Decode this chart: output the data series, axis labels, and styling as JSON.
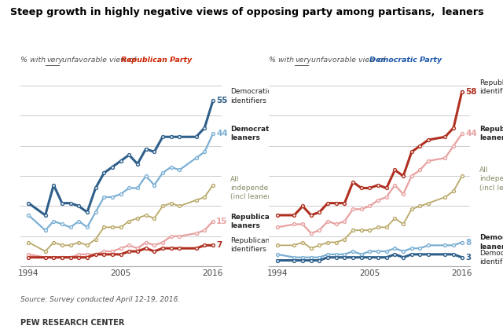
{
  "title": "Steep growth in highly negative views of opposing party among partisans,  leaners",
  "years": [
    1994,
    1996,
    1997,
    1998,
    1999,
    2000,
    2001,
    2002,
    2003,
    2004,
    2005,
    2006,
    2007,
    2008,
    2009,
    2010,
    2011,
    2012,
    2014,
    2015,
    2016
  ],
  "left_dem_id": [
    21,
    17,
    27,
    21,
    21,
    20,
    18,
    26,
    31,
    33,
    35,
    37,
    34,
    39,
    38,
    43,
    43,
    43,
    43,
    46,
    55
  ],
  "left_dem_lean": [
    17,
    12,
    15,
    14,
    13,
    15,
    13,
    18,
    23,
    23,
    24,
    26,
    26,
    30,
    27,
    31,
    33,
    32,
    36,
    38,
    44
  ],
  "left_indep": [
    8,
    5,
    8,
    7,
    7,
    8,
    7,
    9,
    13,
    13,
    13,
    15,
    16,
    17,
    16,
    20,
    21,
    20,
    22,
    23,
    27
  ],
  "left_rep_lean": [
    4,
    3,
    3,
    3,
    3,
    4,
    4,
    4,
    5,
    5,
    6,
    7,
    6,
    8,
    7,
    8,
    10,
    10,
    11,
    12,
    15
  ],
  "left_rep_id": [
    3,
    3,
    3,
    3,
    3,
    3,
    3,
    4,
    4,
    4,
    4,
    5,
    5,
    6,
    5,
    6,
    6,
    6,
    6,
    7,
    7
  ],
  "right_rep_id": [
    17,
    17,
    20,
    17,
    18,
    21,
    21,
    21,
    28,
    26,
    26,
    27,
    26,
    32,
    30,
    38,
    40,
    42,
    43,
    46,
    58
  ],
  "right_rep_lean": [
    13,
    14,
    14,
    11,
    12,
    15,
    14,
    15,
    19,
    19,
    20,
    22,
    23,
    27,
    24,
    30,
    32,
    35,
    36,
    40,
    44
  ],
  "right_indep": [
    7,
    7,
    8,
    6,
    7,
    8,
    8,
    9,
    12,
    12,
    12,
    13,
    13,
    16,
    14,
    19,
    20,
    21,
    23,
    25,
    30
  ],
  "right_dem_lean": [
    4,
    3,
    3,
    3,
    3,
    4,
    4,
    4,
    5,
    4,
    5,
    5,
    5,
    6,
    5,
    6,
    6,
    7,
    7,
    7,
    8
  ],
  "right_dem_id": [
    2,
    2,
    2,
    2,
    2,
    3,
    3,
    3,
    3,
    3,
    3,
    3,
    3,
    4,
    3,
    4,
    4,
    4,
    4,
    4,
    3
  ],
  "c_dem_id": "#2e5f8a",
  "c_dem_lean": "#7bafd4",
  "c_rep_id": "#b03020",
  "c_rep_lean": "#e8a0a0",
  "c_indep": "#b8a868",
  "source": "Source: Survey conducted April 12-19, 2016.",
  "credit": "PEW RESEARCH CENTER"
}
